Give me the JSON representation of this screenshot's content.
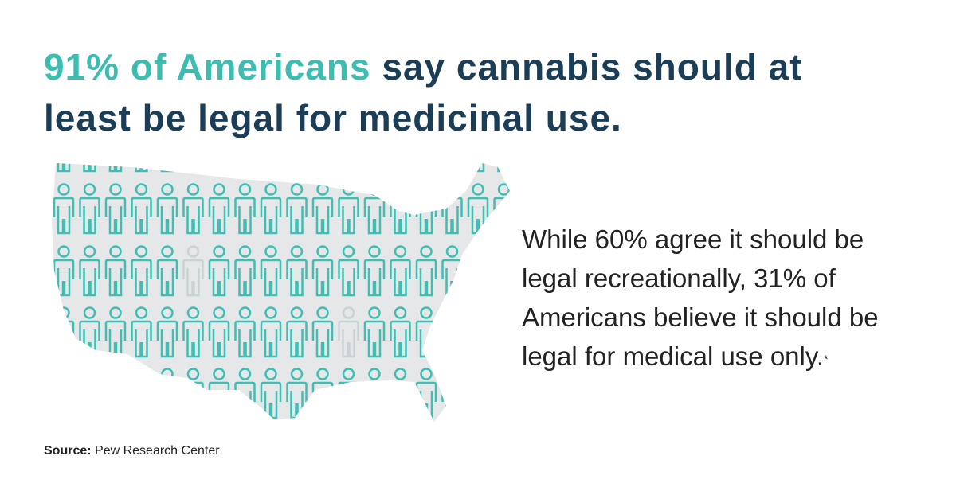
{
  "headline": {
    "highlight": "91% of Americans",
    "line1_rest": "say cannabis should at",
    "line2": "least be legal for medicinal use."
  },
  "body": {
    "lines": [
      "While 60% agree it should be",
      "legal recreationally, 31% of",
      "Americans believe it should be",
      "legal for medical use only."
    ],
    "footnote_marker": "*"
  },
  "source": {
    "label": "Source:",
    "text": "Pew Research Center"
  }
}
